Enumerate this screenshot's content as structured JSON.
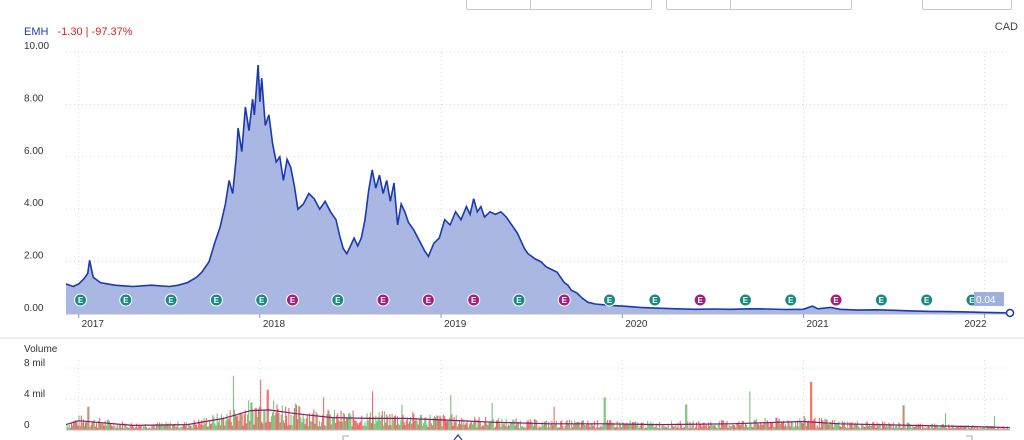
{
  "header": {
    "symbol": "EMH",
    "change": "-1.30 | -97.37%"
  },
  "currency": "CAD",
  "volume_label": "Volume",
  "chart_data": [
    {
      "type": "area",
      "title": "EMH",
      "ylim": [
        0,
        10
      ],
      "y_ticks": [
        "0.00",
        "2.00",
        "4.00",
        "6.00",
        "8.00",
        "10.00"
      ],
      "x_ticks": [
        {
          "label": "2017",
          "x": 2017.0
        },
        {
          "label": "2018",
          "x": 2018.0
        },
        {
          "label": "2019",
          "x": 2019.0
        },
        {
          "label": "2020",
          "x": 2020.0
        },
        {
          "label": "2021",
          "x": 2021.0
        },
        {
          "label": "2022",
          "x": 2022.0
        }
      ],
      "x_range": [
        2016.93,
        2022.14
      ],
      "last_value": "0.04",
      "grid": true,
      "series": [
        {
          "values": [
            [
              2016.93,
              1.15
            ],
            [
              2016.97,
              1.05
            ],
            [
              2017.0,
              1.15
            ],
            [
              2017.03,
              1.35
            ],
            [
              2017.05,
              1.55
            ],
            [
              2017.06,
              2.05
            ],
            [
              2017.08,
              1.4
            ],
            [
              2017.12,
              1.2
            ],
            [
              2017.2,
              1.1
            ],
            [
              2017.3,
              1.05
            ],
            [
              2017.4,
              1.1
            ],
            [
              2017.5,
              1.05
            ],
            [
              2017.55,
              1.1
            ],
            [
              2017.6,
              1.2
            ],
            [
              2017.65,
              1.4
            ],
            [
              2017.68,
              1.6
            ],
            [
              2017.72,
              2.0
            ],
            [
              2017.75,
              2.7
            ],
            [
              2017.78,
              3.3
            ],
            [
              2017.81,
              4.2
            ],
            [
              2017.83,
              5.1
            ],
            [
              2017.85,
              4.6
            ],
            [
              2017.87,
              6.0
            ],
            [
              2017.88,
              7.1
            ],
            [
              2017.9,
              6.2
            ],
            [
              2017.92,
              7.9
            ],
            [
              2017.94,
              7.0
            ],
            [
              2017.96,
              8.2
            ],
            [
              2017.97,
              7.6
            ],
            [
              2017.99,
              9.5
            ],
            [
              2018.0,
              8.1
            ],
            [
              2018.01,
              9.0
            ],
            [
              2018.03,
              7.2
            ],
            [
              2018.05,
              7.6
            ],
            [
              2018.07,
              6.5
            ],
            [
              2018.09,
              5.8
            ],
            [
              2018.11,
              6.0
            ],
            [
              2018.13,
              5.1
            ],
            [
              2018.15,
              5.9
            ],
            [
              2018.17,
              5.6
            ],
            [
              2018.19,
              4.9
            ],
            [
              2018.21,
              4.0
            ],
            [
              2018.24,
              4.2
            ],
            [
              2018.27,
              4.6
            ],
            [
              2018.3,
              4.4
            ],
            [
              2018.33,
              4.0
            ],
            [
              2018.36,
              4.3
            ],
            [
              2018.39,
              3.9
            ],
            [
              2018.42,
              3.6
            ],
            [
              2018.44,
              3.0
            ],
            [
              2018.46,
              2.5
            ],
            [
              2018.48,
              2.3
            ],
            [
              2018.5,
              2.6
            ],
            [
              2018.52,
              2.9
            ],
            [
              2018.54,
              2.6
            ],
            [
              2018.56,
              2.9
            ],
            [
              2018.58,
              3.6
            ],
            [
              2018.6,
              4.7
            ],
            [
              2018.62,
              5.5
            ],
            [
              2018.64,
              4.8
            ],
            [
              2018.66,
              5.3
            ],
            [
              2018.68,
              4.6
            ],
            [
              2018.7,
              5.1
            ],
            [
              2018.72,
              4.3
            ],
            [
              2018.74,
              5.0
            ],
            [
              2018.76,
              3.4
            ],
            [
              2018.78,
              4.2
            ],
            [
              2018.8,
              3.9
            ],
            [
              2018.82,
              3.5
            ],
            [
              2018.85,
              3.2
            ],
            [
              2018.88,
              2.8
            ],
            [
              2018.91,
              2.4
            ],
            [
              2018.93,
              2.2
            ],
            [
              2018.96,
              2.7
            ],
            [
              2018.99,
              2.9
            ],
            [
              2019.02,
              3.6
            ],
            [
              2019.05,
              3.4
            ],
            [
              2019.08,
              3.9
            ],
            [
              2019.11,
              3.6
            ],
            [
              2019.14,
              4.1
            ],
            [
              2019.16,
              3.8
            ],
            [
              2019.18,
              4.4
            ],
            [
              2019.2,
              3.9
            ],
            [
              2019.22,
              4.1
            ],
            [
              2019.24,
              3.7
            ],
            [
              2019.27,
              3.9
            ],
            [
              2019.3,
              3.8
            ],
            [
              2019.33,
              3.9
            ],
            [
              2019.36,
              3.7
            ],
            [
              2019.39,
              3.4
            ],
            [
              2019.42,
              3.1
            ],
            [
              2019.44,
              2.8
            ],
            [
              2019.46,
              2.5
            ],
            [
              2019.48,
              2.3
            ],
            [
              2019.5,
              2.2
            ],
            [
              2019.52,
              2.1
            ],
            [
              2019.55,
              2.0
            ],
            [
              2019.58,
              1.8
            ],
            [
              2019.61,
              1.7
            ],
            [
              2019.64,
              1.6
            ],
            [
              2019.66,
              1.4
            ],
            [
              2019.68,
              1.2
            ],
            [
              2019.7,
              1.1
            ],
            [
              2019.72,
              0.9
            ],
            [
              2019.75,
              0.8
            ],
            [
              2019.78,
              0.6
            ],
            [
              2019.81,
              0.45
            ],
            [
              2019.85,
              0.38
            ],
            [
              2019.9,
              0.35
            ],
            [
              2019.95,
              0.32
            ],
            [
              2020.0,
              0.3
            ],
            [
              2020.1,
              0.25
            ],
            [
              2020.2,
              0.22
            ],
            [
              2020.3,
              0.2
            ],
            [
              2020.4,
              0.18
            ],
            [
              2020.5,
              0.19
            ],
            [
              2020.6,
              0.18
            ],
            [
              2020.7,
              0.2
            ],
            [
              2020.8,
              0.19
            ],
            [
              2020.9,
              0.17
            ],
            [
              2021.0,
              0.18
            ],
            [
              2021.05,
              0.3
            ],
            [
              2021.08,
              0.2
            ],
            [
              2021.15,
              0.25
            ],
            [
              2021.2,
              0.18
            ],
            [
              2021.3,
              0.15
            ],
            [
              2021.4,
              0.16
            ],
            [
              2021.5,
              0.14
            ],
            [
              2021.6,
              0.12
            ],
            [
              2021.7,
              0.1
            ],
            [
              2021.8,
              0.09
            ],
            [
              2021.9,
              0.08
            ],
            [
              2022.0,
              0.06
            ],
            [
              2022.08,
              0.05
            ],
            [
              2022.14,
              0.04
            ]
          ]
        }
      ],
      "events": [
        {
          "label": "E",
          "x": 2017.01,
          "color": "#1a8a80"
        },
        {
          "label": "E",
          "x": 2017.26,
          "color": "#1a8a80"
        },
        {
          "label": "E",
          "x": 2017.51,
          "color": "#1a8a80"
        },
        {
          "label": "E",
          "x": 2017.76,
          "color": "#1a8a80"
        },
        {
          "label": "E",
          "x": 2018.01,
          "color": "#1a8a80"
        },
        {
          "label": "E",
          "x": 2018.18,
          "color": "#a02080"
        },
        {
          "label": "E",
          "x": 2018.43,
          "color": "#1a8a80"
        },
        {
          "label": "E",
          "x": 2018.68,
          "color": "#a02080"
        },
        {
          "label": "E",
          "x": 2018.93,
          "color": "#a02080"
        },
        {
          "label": "E",
          "x": 2019.18,
          "color": "#a02080"
        },
        {
          "label": "E",
          "x": 2019.43,
          "color": "#1a8a80"
        },
        {
          "label": "E",
          "x": 2019.68,
          "color": "#a02080"
        },
        {
          "label": "E",
          "x": 2019.93,
          "color": "#1a8a80"
        },
        {
          "label": "E",
          "x": 2020.18,
          "color": "#1a8a80"
        },
        {
          "label": "E",
          "x": 2020.43,
          "color": "#a02080"
        },
        {
          "label": "E",
          "x": 2020.68,
          "color": "#1a8a80"
        },
        {
          "label": "E",
          "x": 2020.93,
          "color": "#1a8a80"
        },
        {
          "label": "E",
          "x": 2021.18,
          "color": "#a02080"
        },
        {
          "label": "E",
          "x": 2021.43,
          "color": "#1a8a80"
        },
        {
          "label": "E",
          "x": 2021.68,
          "color": "#1a8a80"
        },
        {
          "label": "E",
          "x": 2021.93,
          "color": "#1a8a80"
        }
      ]
    },
    {
      "type": "bar",
      "title": "Volume",
      "ylim": [
        0,
        8
      ],
      "y_ticks": [
        "0",
        "4 mil",
        "8 mil"
      ],
      "peaks": [
        [
          2017.05,
          3.0
        ],
        [
          2017.85,
          7.0
        ],
        [
          2018.0,
          6.5
        ],
        [
          2018.04,
          5.2
        ],
        [
          2018.35,
          4.2
        ],
        [
          2018.62,
          5.0
        ],
        [
          2018.78,
          3.3
        ],
        [
          2019.05,
          4.5
        ],
        [
          2019.28,
          3.5
        ],
        [
          2019.62,
          3.0
        ],
        [
          2019.9,
          4.2
        ],
        [
          2020.35,
          3.3
        ],
        [
          2020.7,
          5.0
        ],
        [
          2021.04,
          6.2
        ],
        [
          2021.55,
          3.2
        ],
        [
          2021.78,
          2.2
        ],
        [
          2022.05,
          1.8
        ]
      ],
      "moving_average": [
        [
          2016.93,
          0.7
        ],
        [
          2017.0,
          1.2
        ],
        [
          2017.1,
          1.0
        ],
        [
          2017.3,
          0.6
        ],
        [
          2017.6,
          0.7
        ],
        [
          2017.8,
          1.5
        ],
        [
          2017.95,
          2.5
        ],
        [
          2018.05,
          2.6
        ],
        [
          2018.2,
          2.1
        ],
        [
          2018.4,
          1.6
        ],
        [
          2018.6,
          1.5
        ],
        [
          2018.8,
          1.5
        ],
        [
          2019.0,
          1.3
        ],
        [
          2019.3,
          1.0
        ],
        [
          2019.6,
          0.8
        ],
        [
          2019.9,
          0.8
        ],
        [
          2020.2,
          0.7
        ],
        [
          2020.6,
          0.8
        ],
        [
          2021.0,
          1.1
        ],
        [
          2021.2,
          0.8
        ],
        [
          2021.6,
          0.6
        ],
        [
          2022.0,
          0.4
        ],
        [
          2022.14,
          0.3
        ]
      ],
      "colors": {
        "up": "#4caf50",
        "down": "#e53935",
        "average": "#8b1a6a"
      }
    }
  ]
}
